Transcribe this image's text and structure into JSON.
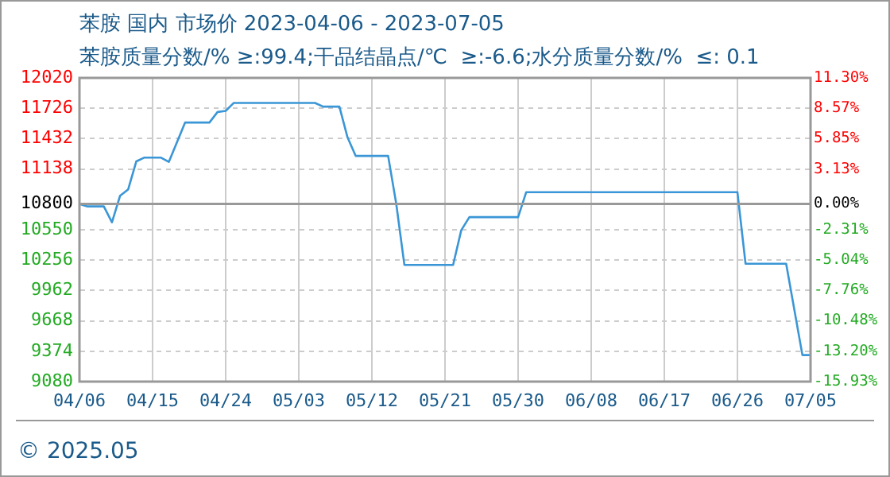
{
  "chart_data": {
    "type": "line",
    "title": "苯胺 国内 市场价 2023-04-06 - 2023-07-05",
    "subtitle": "苯胺质量分数/% ≥:99.4;干品结晶点/℃  ≥:-6.6;水分质量分数/%  ≤: 0.1",
    "annotations": [
      "© 2025.05"
    ],
    "x": [
      "2023-04-06",
      "2023-04-07",
      "2023-04-09",
      "2023-04-10",
      "2023-04-11",
      "2023-04-12",
      "2023-04-13",
      "2023-04-14",
      "2023-04-16",
      "2023-04-17",
      "2023-04-19",
      "2023-04-22",
      "2023-04-23",
      "2023-04-24",
      "2023-04-25",
      "2023-05-05",
      "2023-05-06",
      "2023-05-08",
      "2023-05-09",
      "2023-05-10",
      "2023-05-14",
      "2023-05-15",
      "2023-05-16",
      "2023-05-22",
      "2023-05-23",
      "2023-05-24",
      "2023-05-30",
      "2023-05-31",
      "2023-06-26",
      "2023-06-27",
      "2023-07-02",
      "2023-07-04",
      "2023-07-05"
    ],
    "series": [
      {
        "color": "#3a96d6",
        "values": [
          10800,
          10776,
          10776,
          10622,
          10879,
          10941,
          11212,
          11249,
          11249,
          11207,
          11588,
          11588,
          11690,
          11701,
          11778,
          11778,
          11742,
          11742,
          11444,
          11265,
          11265,
          10800,
          10210,
          10210,
          10545,
          10672,
          10672,
          10914,
          10914,
          10221,
          10221,
          9337,
          9337
        ]
      }
    ],
    "xlim": [
      "2023-04-06",
      "2023-07-05"
    ],
    "xticks": [
      {
        "value": "2023-04-06",
        "label": "04/06"
      },
      {
        "value": "2023-04-15",
        "label": "04/15"
      },
      {
        "value": "2023-04-24",
        "label": "04/24"
      },
      {
        "value": "2023-05-03",
        "label": "05/03"
      },
      {
        "value": "2023-05-12",
        "label": "05/12"
      },
      {
        "value": "2023-05-21",
        "label": "05/21"
      },
      {
        "value": "2023-05-30",
        "label": "05/30"
      },
      {
        "value": "2023-06-08",
        "label": "06/08"
      },
      {
        "value": "2023-06-17",
        "label": "06/17"
      },
      {
        "value": "2023-06-26",
        "label": "06/26"
      },
      {
        "value": "2023-07-05",
        "label": "07/05"
      }
    ],
    "ylim": [
      9080,
      12020
    ],
    "yticks": [
      12020,
      11726,
      11432,
      11138,
      10800,
      10550,
      10256,
      9962,
      9668,
      9374,
      9080
    ],
    "y2lim": [
      -15.93,
      11.3
    ],
    "y2ticks": [
      {
        "value": 11.3,
        "label": "11.30%"
      },
      {
        "value": 8.57,
        "label": "8.57%"
      },
      {
        "value": 5.85,
        "label": "5.85%"
      },
      {
        "value": 3.13,
        "label": "3.13%"
      },
      {
        "value": 0,
        "label": "0.00%"
      },
      {
        "value": -2.31,
        "label": "-2.31%"
      },
      {
        "value": -5.04,
        "label": "-5.04%"
      },
      {
        "value": -7.76,
        "label": "-7.76%"
      },
      {
        "value": -10.48,
        "label": "-10.48%"
      },
      {
        "value": -13.2,
        "label": "-13.20%"
      },
      {
        "value": -15.93,
        "label": "-15.93%"
      }
    ],
    "ref_lines": [
      {
        "axis": "y2",
        "value": 0,
        "color": "#999999"
      }
    ],
    "grid": true,
    "legend": false,
    "marker": "none"
  }
}
